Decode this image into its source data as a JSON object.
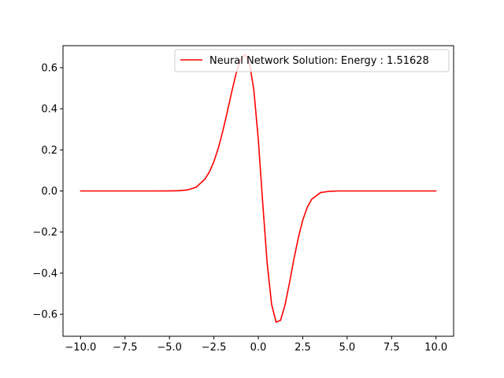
{
  "chart_data": {
    "type": "line",
    "title": "",
    "xlabel": "",
    "ylabel": "",
    "xlim": [
      -10.99,
      10.99
    ],
    "ylim": [
      -0.707,
      0.707
    ],
    "xticks": [
      -10.0,
      -7.5,
      -5.0,
      -2.5,
      0.0,
      2.5,
      5.0,
      7.5,
      10.0
    ],
    "xtick_labels": [
      "−10.0",
      "−7.5",
      "−5.0",
      "−2.5",
      "0.0",
      "2.5",
      "5.0",
      "7.5",
      "10.0"
    ],
    "yticks": [
      -0.6,
      -0.4,
      -0.2,
      0.0,
      0.2,
      0.4,
      0.6
    ],
    "ytick_labels": [
      "−0.6",
      "−0.4",
      "−0.2",
      "0.0",
      "0.2",
      "0.4",
      "0.6"
    ],
    "grid": false,
    "legend": {
      "placement": "top-right"
    },
    "series": [
      {
        "name": "Neural Network Solution: Energy : 1.51628",
        "color": "#ff0000",
        "x": [
          -10,
          -9,
          -8,
          -7,
          -6,
          -5,
          -4.5,
          -4,
          -3.5,
          -3,
          -2.75,
          -2.5,
          -2.25,
          -2,
          -1.75,
          -1.5,
          -1.25,
          -1,
          -0.75,
          -0.5,
          -0.25,
          0,
          0.25,
          0.5,
          0.75,
          1,
          1.25,
          1.5,
          1.75,
          2,
          2.25,
          2.5,
          2.75,
          3,
          3.5,
          4,
          4.5,
          5,
          6,
          7,
          8,
          9,
          10
        ],
        "y": [
          0,
          0,
          0,
          0,
          0,
          0.0002,
          0.0011,
          0.0049,
          0.018,
          0.058,
          0.0926,
          0.1425,
          0.2087,
          0.2903,
          0.3835,
          0.4805,
          0.5705,
          0.6386,
          0.6641,
          0.6231,
          0.4911,
          0.2501,
          -0.0595,
          -0.3524,
          -0.5518,
          -0.6381,
          -0.6294,
          -0.5564,
          -0.4493,
          -0.3335,
          -0.2287,
          -0.1424,
          -0.0804,
          -0.0406,
          -0.0079,
          -0.0015,
          0,
          0,
          0,
          0,
          0,
          0,
          0
        ]
      }
    ]
  }
}
